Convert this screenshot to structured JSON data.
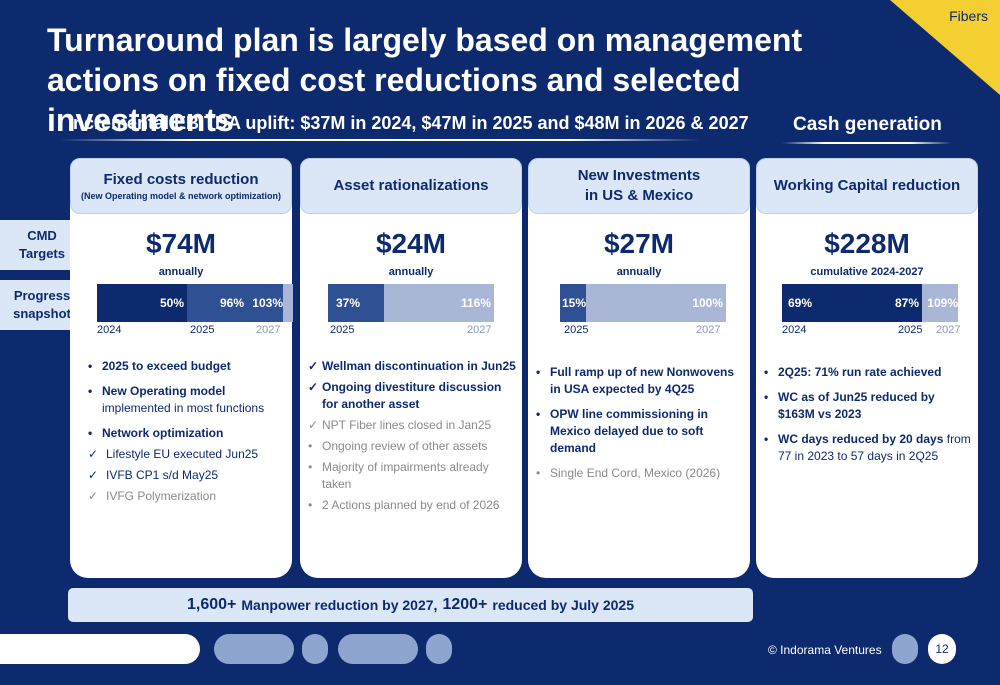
{
  "header": {
    "title": "Turnaround plan is largely based on management actions on fixed cost reductions and selected investments",
    "subtitle": "Incremental EBITDA uplift: $37M in 2024, $47M in 2025 and $48M in 2026 & 2027",
    "cash_title": "Cash generation",
    "tag": "Fibers"
  },
  "row_labels": {
    "targets": "CMD Targets",
    "progress": "Progress snapshot"
  },
  "cards": [
    {
      "title": "Fixed costs reduction",
      "subtitle": "(New Operating model & network optimization)",
      "target": "$74M",
      "target_sub": "annually",
      "segments": [
        {
          "label": "50%",
          "color": "#0d2a6e"
        },
        {
          "label": "96%",
          "color": "#2f5093"
        },
        {
          "label": "103%",
          "color": "#2f5093"
        },
        {
          "label": "",
          "color": "#a9b6d6"
        }
      ],
      "years": [
        "2024",
        "2025",
        "2027"
      ],
      "bullets": [
        "2025 to exceed budget",
        "New Operating model",
        "implemented in most functions",
        "Network optimization",
        "Lifestyle EU executed Jun25",
        "IVFB CP1 s/d May25",
        "IVFG Polymerization"
      ]
    },
    {
      "title": "Asset rationalizations",
      "target": "$24M",
      "target_sub": "annually",
      "segments": [
        {
          "label": "37%",
          "color": "#2f5093"
        },
        {
          "label": "116%",
          "color": "#a9b6d6"
        }
      ],
      "years": [
        "2025",
        "2027"
      ],
      "bullets": [
        "Wellman discontinuation in Jun25",
        "Ongoing divestiture discussion for another asset",
        "NPT Fiber lines closed in Jan25",
        "Ongoing review of other assets",
        "Majority of impairments already taken",
        "2 Actions planned by end of 2026"
      ]
    },
    {
      "title": "New Investments in US & Mexico",
      "title_lines": [
        "New Investments",
        "in US & Mexico"
      ],
      "target": "$27M",
      "target_sub": "annually",
      "segments": [
        {
          "label": "15%",
          "color": "#2f5093"
        },
        {
          "label": "100%",
          "color": "#a9b6d6"
        }
      ],
      "years": [
        "2025",
        "2027"
      ],
      "bullets": [
        "Full ramp up of new Nonwovens in USA expected by 4Q25",
        "OPW line commissioning in Mexico delayed due to soft demand",
        "Single End Cord, Mexico (2026)"
      ]
    },
    {
      "title": "Working Capital reduction",
      "target": "$228M",
      "target_sub": "cumulative 2024-2027",
      "segments": [
        {
          "label": "69%",
          "color": "#0d2a6e"
        },
        {
          "label": "87%",
          "color": "#0d2a6e"
        },
        {
          "label": "109%",
          "color": "#a9b6d6"
        }
      ],
      "years": [
        "2024",
        "2025",
        "2027"
      ],
      "bullets": [
        "2Q25: 71% run rate achieved",
        "WC as of Jun25 reduced by $163M vs 2023",
        "WC days reduced by 20 days",
        "from 77 in 2023 to 57 days in 2Q25"
      ]
    }
  ],
  "footer": {
    "num1": "1,600+",
    "text1": "Manpower reduction by 2027,",
    "num2": "1200+",
    "text2": "reduced by July 2025",
    "copyright": "© Indorama Ventures",
    "page": "12"
  }
}
